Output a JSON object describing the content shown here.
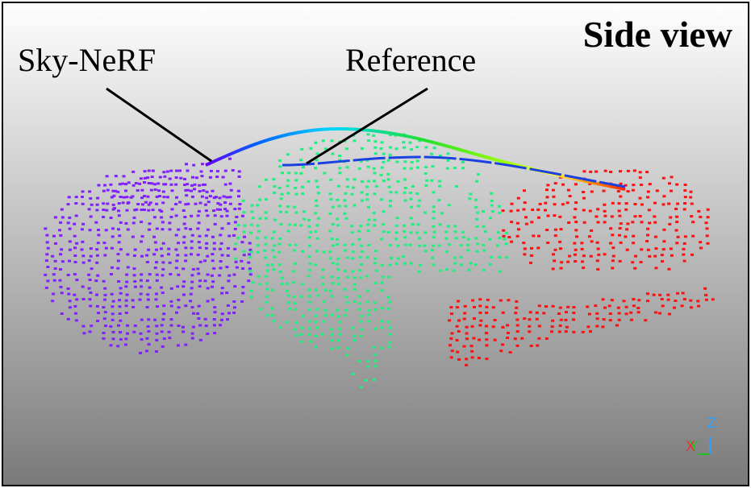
{
  "header": {
    "title": "Side view"
  },
  "labels": {
    "sky_nerf": "Sky-NeRF",
    "reference": "Reference"
  },
  "axes": {
    "z": "Z",
    "y": "Y",
    "x": "X"
  }
}
